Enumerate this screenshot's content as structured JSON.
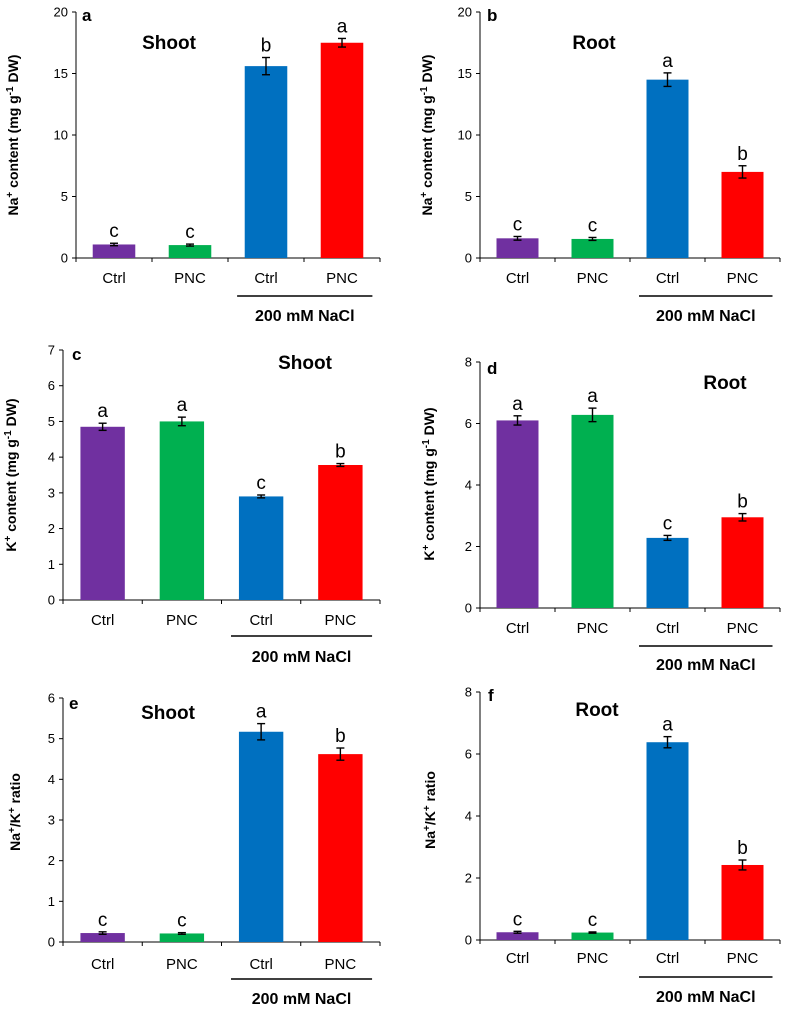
{
  "chart_data": [
    {
      "type": "bar",
      "panel": "a",
      "title": "Shoot",
      "ylabel": {
        "pre": "Na",
        "sup1": "+",
        "mid": " content (mg g",
        "sup2": "-1",
        "post": " DW)"
      },
      "ylim": [
        0,
        20
      ],
      "yticks": [
        "0",
        "5",
        "10",
        "15",
        "20"
      ],
      "categories": [
        "Ctrl",
        "PNC",
        "Ctrl",
        "PNC"
      ],
      "colors": [
        "#7030a0",
        "#00b050",
        "#0070c0",
        "#ff0000"
      ],
      "values": [
        1.1,
        1.05,
        15.6,
        17.5
      ],
      "errors": [
        0.1,
        0.08,
        0.7,
        0.35
      ],
      "letters": [
        "c",
        "c",
        "b",
        "a"
      ],
      "group_label": "200 mM NaCl"
    },
    {
      "type": "bar",
      "panel": "b",
      "title": "Root",
      "ylabel": {
        "pre": "Na",
        "sup1": "+",
        "mid": " content (mg g",
        "sup2": "-1",
        "post": " DW)"
      },
      "ylim": [
        0,
        20
      ],
      "yticks": [
        "0",
        "5",
        "10",
        "15",
        "20"
      ],
      "categories": [
        "Ctrl",
        "PNC",
        "Ctrl",
        "PNC"
      ],
      "colors": [
        "#7030a0",
        "#00b050",
        "#0070c0",
        "#ff0000"
      ],
      "values": [
        1.6,
        1.55,
        14.5,
        7.0
      ],
      "errors": [
        0.15,
        0.12,
        0.55,
        0.5
      ],
      "letters": [
        "c",
        "c",
        "a",
        "b"
      ],
      "group_label": "200 mM NaCl"
    },
    {
      "type": "bar",
      "panel": "c",
      "title": "Shoot",
      "ylabel": {
        "pre": "K",
        "sup1": "+",
        "mid": " content (mg g",
        "sup2": "-1",
        "post": " DW)"
      },
      "ylim": [
        0,
        7
      ],
      "yticks": [
        "0",
        "1",
        "2",
        "3",
        "4",
        "5",
        "6",
        "7"
      ],
      "categories": [
        "Ctrl",
        "PNC",
        "Ctrl",
        "PNC"
      ],
      "colors": [
        "#7030a0",
        "#00b050",
        "#0070c0",
        "#ff0000"
      ],
      "values": [
        4.85,
        5.0,
        2.9,
        3.78
      ],
      "errors": [
        0.1,
        0.12,
        0.04,
        0.04
      ],
      "letters": [
        "a",
        "a",
        "c",
        "b"
      ],
      "group_label": "200 mM NaCl"
    },
    {
      "type": "bar",
      "panel": "d",
      "title": "Root",
      "ylabel": {
        "pre": "K",
        "sup1": "+",
        "mid": " content (mg g",
        "sup2": "-1",
        "post": " DW)"
      },
      "ylim": [
        0,
        8
      ],
      "yticks": [
        "0",
        "2",
        "4",
        "6",
        "8"
      ],
      "categories": [
        "Ctrl",
        "PNC",
        "Ctrl",
        "PNC"
      ],
      "colors": [
        "#7030a0",
        "#00b050",
        "#0070c0",
        "#ff0000"
      ],
      "values": [
        6.1,
        6.28,
        2.28,
        2.95
      ],
      "errors": [
        0.15,
        0.22,
        0.08,
        0.12
      ],
      "letters": [
        "a",
        "a",
        "c",
        "b"
      ],
      "group_label": "200 mM NaCl"
    },
    {
      "type": "bar",
      "panel": "e",
      "title": "Shoot",
      "ylabel": {
        "pre": "Na",
        "sup1": "+",
        "mid": "/K",
        "sup2": "+",
        "post": " ratio"
      },
      "ylim": [
        0,
        6
      ],
      "yticks": [
        "0",
        "1",
        "2",
        "3",
        "4",
        "5",
        "6"
      ],
      "categories": [
        "Ctrl",
        "PNC",
        "Ctrl",
        "PNC"
      ],
      "colors": [
        "#7030a0",
        "#00b050",
        "#0070c0",
        "#ff0000"
      ],
      "values": [
        0.22,
        0.21,
        5.17,
        4.62
      ],
      "errors": [
        0.03,
        0.02,
        0.2,
        0.15
      ],
      "letters": [
        "c",
        "c",
        "a",
        "b"
      ],
      "group_label": "200 mM NaCl"
    },
    {
      "type": "bar",
      "panel": "f",
      "title": "Root",
      "ylabel": {
        "pre": "Na",
        "sup1": "+",
        "mid": "/K",
        "sup2": "+",
        "post": " ratio"
      },
      "ylim": [
        0,
        8
      ],
      "yticks": [
        "0",
        "2",
        "4",
        "6",
        "8"
      ],
      "categories": [
        "Ctrl",
        "PNC",
        "Ctrl",
        "PNC"
      ],
      "colors": [
        "#7030a0",
        "#00b050",
        "#0070c0",
        "#ff0000"
      ],
      "values": [
        0.25,
        0.24,
        6.38,
        2.42
      ],
      "errors": [
        0.03,
        0.02,
        0.18,
        0.16
      ],
      "letters": [
        "c",
        "c",
        "a",
        "b"
      ],
      "group_label": "200 mM NaCl"
    }
  ]
}
